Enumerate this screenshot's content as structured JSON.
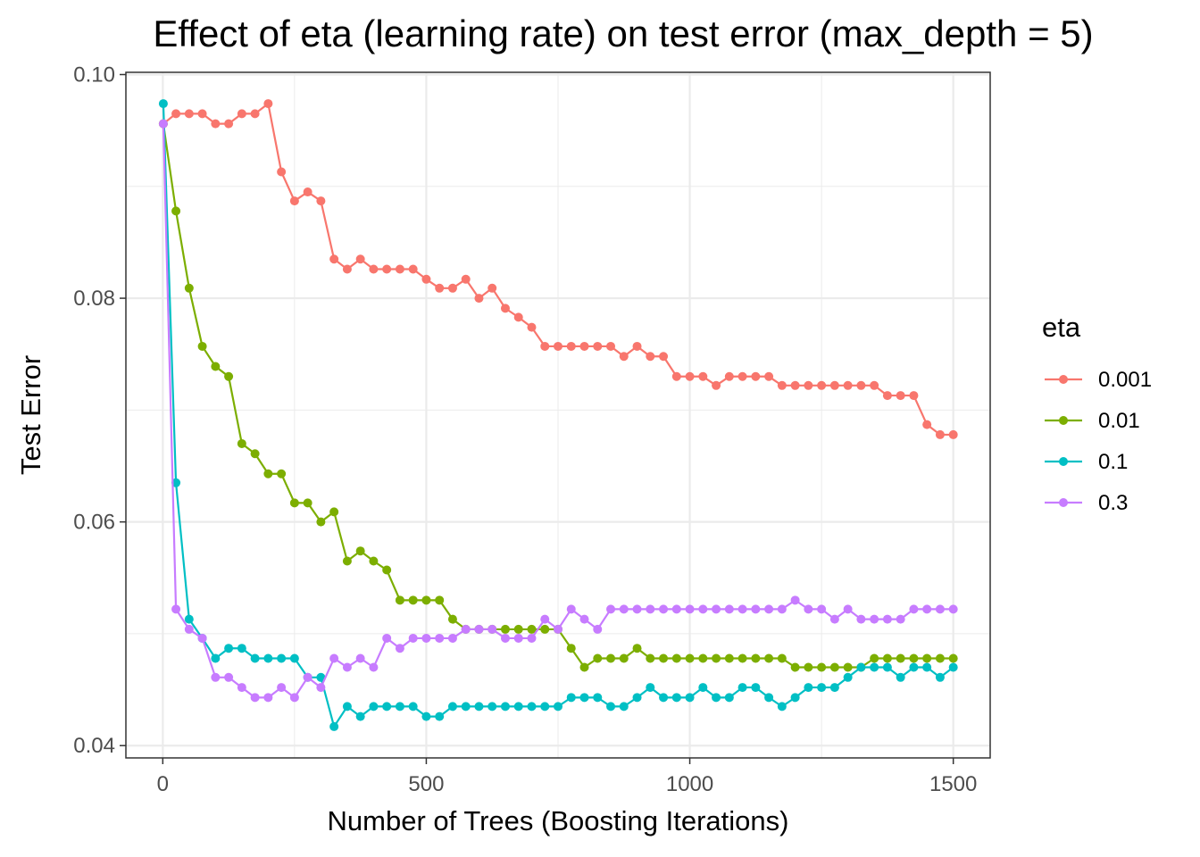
{
  "chart_data": {
    "type": "line",
    "title": "Effect of eta (learning rate) on test error (max_depth = 5)",
    "xlabel": "Number of Trees (Boosting Iterations)",
    "ylabel": "Test Error",
    "xlim": [
      -70,
      1570
    ],
    "ylim": [
      0.0389,
      0.1002
    ],
    "x_ticks": [
      0,
      500,
      1000,
      1500
    ],
    "x_tick_labels": [
      "0",
      "500",
      "1000",
      "1500"
    ],
    "y_ticks": [
      0.04,
      0.06,
      0.08,
      0.1
    ],
    "y_tick_labels": [
      "0.04",
      "0.06",
      "0.08",
      "0.10"
    ],
    "grid": true,
    "legend_title": "eta",
    "legend_position": "right",
    "x": [
      1,
      25,
      50,
      75,
      100,
      125,
      150,
      175,
      200,
      225,
      250,
      275,
      300,
      325,
      350,
      375,
      400,
      425,
      450,
      475,
      500,
      525,
      550,
      575,
      600,
      625,
      650,
      675,
      700,
      725,
      750,
      775,
      800,
      825,
      850,
      875,
      900,
      925,
      950,
      975,
      1000,
      1025,
      1050,
      1075,
      1100,
      1125,
      1150,
      1175,
      1200,
      1225,
      1250,
      1275,
      1300,
      1325,
      1350,
      1375,
      1400,
      1425,
      1450,
      1475,
      1500
    ],
    "series": [
      {
        "name": "0.001",
        "color": "#F8766D",
        "values": [
          0.0956,
          0.0965,
          0.0965,
          0.0965,
          0.0956,
          0.0956,
          0.0965,
          0.0965,
          0.0974,
          0.0913,
          0.0887,
          0.0895,
          0.0887,
          0.0835,
          0.0826,
          0.0835,
          0.0826,
          0.0826,
          0.0826,
          0.0826,
          0.0817,
          0.0809,
          0.0809,
          0.0817,
          0.08,
          0.0809,
          0.0791,
          0.0783,
          0.0774,
          0.0757,
          0.0757,
          0.0757,
          0.0757,
          0.0757,
          0.0757,
          0.0748,
          0.0757,
          0.0748,
          0.0748,
          0.073,
          0.073,
          0.073,
          0.0722,
          0.073,
          0.073,
          0.073,
          0.073,
          0.0722,
          0.0722,
          0.0722,
          0.0722,
          0.0722,
          0.0722,
          0.0722,
          0.0722,
          0.0713,
          0.0713,
          0.0713,
          0.0687,
          0.0678,
          0.0678
        ]
      },
      {
        "name": "0.01",
        "color": "#7CAE00",
        "values": [
          0.0956,
          0.0878,
          0.0809,
          0.0757,
          0.0739,
          0.073,
          0.067,
          0.0661,
          0.0643,
          0.0643,
          0.0617,
          0.0617,
          0.06,
          0.0609,
          0.0565,
          0.0574,
          0.0565,
          0.0557,
          0.053,
          0.053,
          0.053,
          0.053,
          0.0513,
          0.0504,
          0.0504,
          0.0504,
          0.0504,
          0.0504,
          0.0504,
          0.0504,
          0.0504,
          0.0487,
          0.047,
          0.0478,
          0.0478,
          0.0478,
          0.0487,
          0.0478,
          0.0478,
          0.0478,
          0.0478,
          0.0478,
          0.0478,
          0.0478,
          0.0478,
          0.0478,
          0.0478,
          0.0478,
          0.047,
          0.047,
          0.047,
          0.047,
          0.047,
          0.047,
          0.0478,
          0.0478,
          0.0478,
          0.0478,
          0.0478,
          0.0478,
          0.0478
        ]
      },
      {
        "name": "0.1",
        "color": "#00BFC4",
        "values": [
          0.0974,
          0.0635,
          0.0513,
          0.0496,
          0.0478,
          0.0487,
          0.0487,
          0.0478,
          0.0478,
          0.0478,
          0.0478,
          0.0461,
          0.0461,
          0.0417,
          0.0435,
          0.0426,
          0.0435,
          0.0435,
          0.0435,
          0.0435,
          0.0426,
          0.0426,
          0.0435,
          0.0435,
          0.0435,
          0.0435,
          0.0435,
          0.0435,
          0.0435,
          0.0435,
          0.0435,
          0.0443,
          0.0443,
          0.0443,
          0.0435,
          0.0435,
          0.0443,
          0.0452,
          0.0443,
          0.0443,
          0.0443,
          0.0452,
          0.0443,
          0.0443,
          0.0452,
          0.0452,
          0.0443,
          0.0435,
          0.0443,
          0.0452,
          0.0452,
          0.0452,
          0.0461,
          0.047,
          0.047,
          0.047,
          0.0461,
          0.047,
          0.047,
          0.0461,
          0.047
        ]
      },
      {
        "name": "0.3",
        "color": "#C77CFF",
        "values": [
          0.0956,
          0.0522,
          0.0504,
          0.0496,
          0.0461,
          0.0461,
          0.0452,
          0.0443,
          0.0443,
          0.0452,
          0.0443,
          0.0461,
          0.0452,
          0.0478,
          0.047,
          0.0478,
          0.047,
          0.0496,
          0.0487,
          0.0496,
          0.0496,
          0.0496,
          0.0496,
          0.0504,
          0.0504,
          0.0504,
          0.0496,
          0.0496,
          0.0496,
          0.0513,
          0.0504,
          0.0522,
          0.0513,
          0.0504,
          0.0522,
          0.0522,
          0.0522,
          0.0522,
          0.0522,
          0.0522,
          0.0522,
          0.0522,
          0.0522,
          0.0522,
          0.0522,
          0.0522,
          0.0522,
          0.0522,
          0.053,
          0.0522,
          0.0522,
          0.0513,
          0.0522,
          0.0513,
          0.0513,
          0.0513,
          0.0513,
          0.0522,
          0.0522,
          0.0522,
          0.0522
        ]
      }
    ]
  }
}
